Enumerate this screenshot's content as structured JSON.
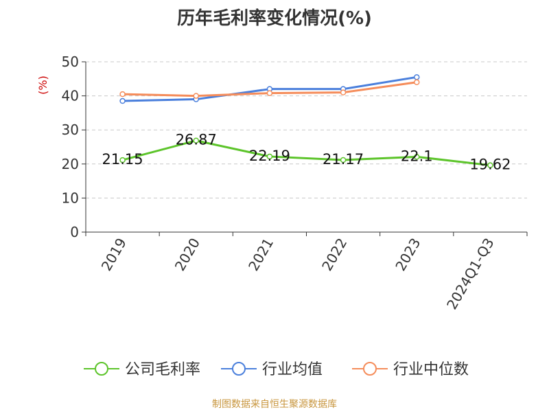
{
  "chart_data": {
    "type": "line",
    "title": "历年毛利率变化情况(%)",
    "ylabel": "(%)",
    "categories": [
      "2019",
      "2020",
      "2021",
      "2022",
      "2023",
      "2024Q1-Q3"
    ],
    "ylim": [
      0,
      50
    ],
    "yticks": [
      0,
      10,
      20,
      30,
      40,
      50
    ],
    "grid": true,
    "legend_position": "bottom",
    "series": [
      {
        "name": "公司毛利率",
        "color": "#5cc42a",
        "values": [
          21.15,
          26.87,
          22.19,
          21.17,
          22.1,
          19.62
        ],
        "labels": [
          "21.15",
          "26.87",
          "22.19",
          "21.17",
          "22.1",
          "19.62"
        ]
      },
      {
        "name": "行业均值",
        "color": "#4a7fdc",
        "values": [
          38.5,
          39.0,
          42.0,
          42.0,
          45.5,
          null
        ]
      },
      {
        "name": "行业中位数",
        "color": "#f58c5a",
        "values": [
          40.5,
          40.0,
          40.8,
          41.0,
          44.0,
          null
        ]
      }
    ]
  },
  "source": "制图数据来自恒生聚源数据库"
}
